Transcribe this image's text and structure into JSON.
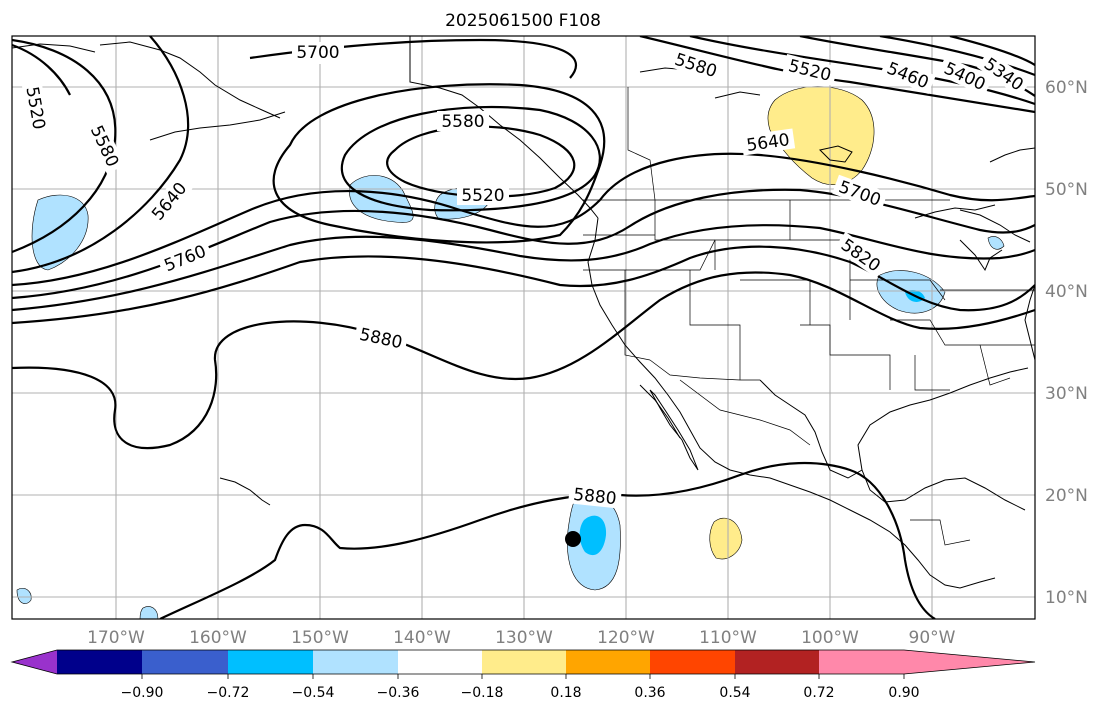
{
  "title": "2025061500 F108",
  "map": {
    "lon_range": [
      -180,
      -80
    ],
    "lat_range": [
      8,
      65
    ],
    "lon_ticks": [
      "170°W",
      "160°W",
      "150°W",
      "140°W",
      "130°W",
      "120°W",
      "110°W",
      "100°W",
      "90°W"
    ],
    "lat_ticks": [
      "60°N",
      "50°N",
      "40°N",
      "30°N",
      "20°N",
      "10°N"
    ],
    "grid": true,
    "contour_labels": [
      "5700",
      "5580",
      "5520",
      "5460",
      "5400",
      "5340",
      "5520",
      "5580",
      "5640",
      "5760",
      "5880",
      "5580",
      "5520",
      "5640",
      "5700",
      "5820",
      "5880"
    ],
    "marker": {
      "label": "point",
      "color": "#000000"
    }
  },
  "colorbar": {
    "colors": [
      "#9932cc",
      "#00008b",
      "#3a5fcd",
      "#00bfff",
      "#b0e2ff",
      "#ffffff",
      "#ffec8b",
      "#ffa500",
      "#ff4500",
      "#b22222",
      "#ff88aa"
    ],
    "tick_labels": [
      "−0.90",
      "−0.72",
      "−0.54",
      "−0.36",
      "−0.18",
      "0.18",
      "0.36",
      "0.54",
      "0.72",
      "0.90"
    ]
  }
}
